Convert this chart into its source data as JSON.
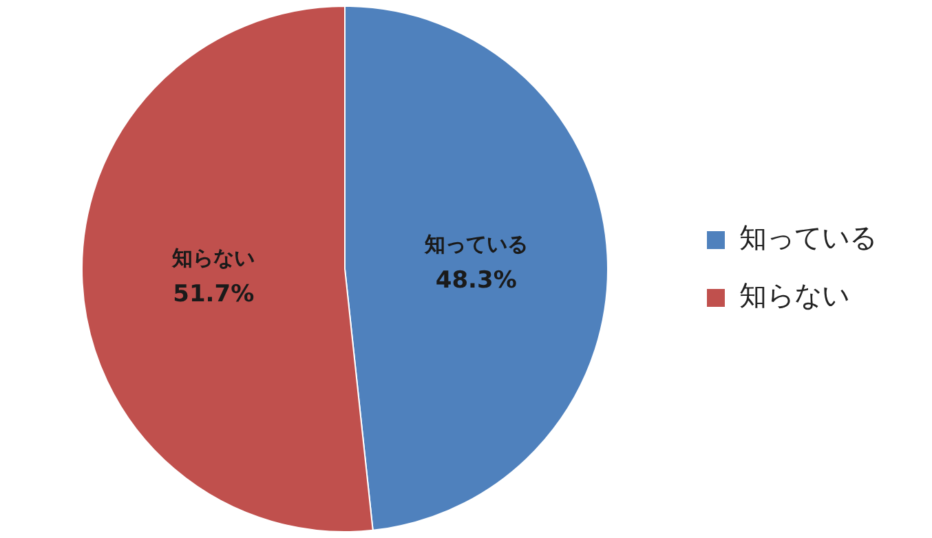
{
  "chart_data": {
    "type": "pie",
    "categories": [
      "知っている",
      "知らない"
    ],
    "values": [
      48.3,
      51.7
    ],
    "colors": [
      "#4f81bd",
      "#c0504d"
    ],
    "value_labels": [
      "48.3%",
      "51.7%"
    ],
    "legend": "right"
  }
}
